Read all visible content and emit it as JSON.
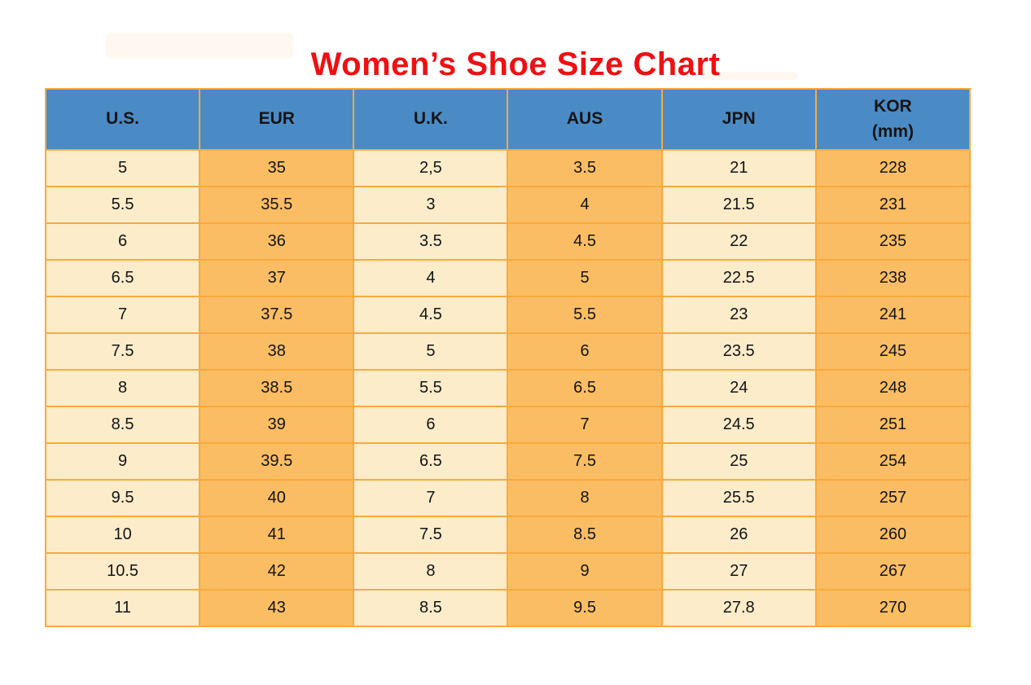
{
  "page": {
    "title": "Women’s Shoe Size Chart",
    "title_color": "#ee1013"
  },
  "colors": {
    "header_background": "#4a8bc6",
    "cell_cream": "#fdecca",
    "cell_orange": "#fbbd63",
    "grid_border": "#f9a93f",
    "title_red": "#ee1013",
    "text": "#141414"
  },
  "table": {
    "headers": [
      {
        "label": "U.S."
      },
      {
        "label": "EUR"
      },
      {
        "label": "U.K."
      },
      {
        "label": "AUS"
      },
      {
        "label": "JPN"
      },
      {
        "label": "KOR",
        "sub": "(mm)"
      }
    ]
  },
  "chart_data": {
    "type": "table",
    "title": "Women’s Shoe Size Chart",
    "columns": [
      "U.S.",
      "EUR",
      "U.K.",
      "AUS",
      "JPN",
      "KOR (mm)"
    ],
    "rows": [
      [
        "5",
        "35",
        "2,5",
        "3.5",
        "21",
        "228"
      ],
      [
        "5.5",
        "35.5",
        "3",
        "4",
        "21.5",
        "231"
      ],
      [
        "6",
        "36",
        "3.5",
        "4.5",
        "22",
        "235"
      ],
      [
        "6.5",
        "37",
        "4",
        "5",
        "22.5",
        "238"
      ],
      [
        "7",
        "37.5",
        "4.5",
        "5.5",
        "23",
        "241"
      ],
      [
        "7.5",
        "38",
        "5",
        "6",
        "23.5",
        "245"
      ],
      [
        "8",
        "38.5",
        "5.5",
        "6.5",
        "24",
        "248"
      ],
      [
        "8.5",
        "39",
        "6",
        "7",
        "24.5",
        "251"
      ],
      [
        "9",
        "39.5",
        "6.5",
        "7.5",
        "25",
        "254"
      ],
      [
        "9.5",
        "40",
        "7",
        "8",
        "25.5",
        "257"
      ],
      [
        "10",
        "41",
        "7.5",
        "8.5",
        "26",
        "260"
      ],
      [
        "10.5",
        "42",
        "8",
        "9",
        "27",
        "267"
      ],
      [
        "11",
        "43",
        "8.5",
        "9.5",
        "27.8",
        "270"
      ]
    ],
    "layout": {
      "column_fill_pattern": [
        "cream",
        "orange",
        "cream",
        "orange",
        "cream",
        "orange"
      ],
      "header_fill": "blue",
      "grid": true
    }
  }
}
